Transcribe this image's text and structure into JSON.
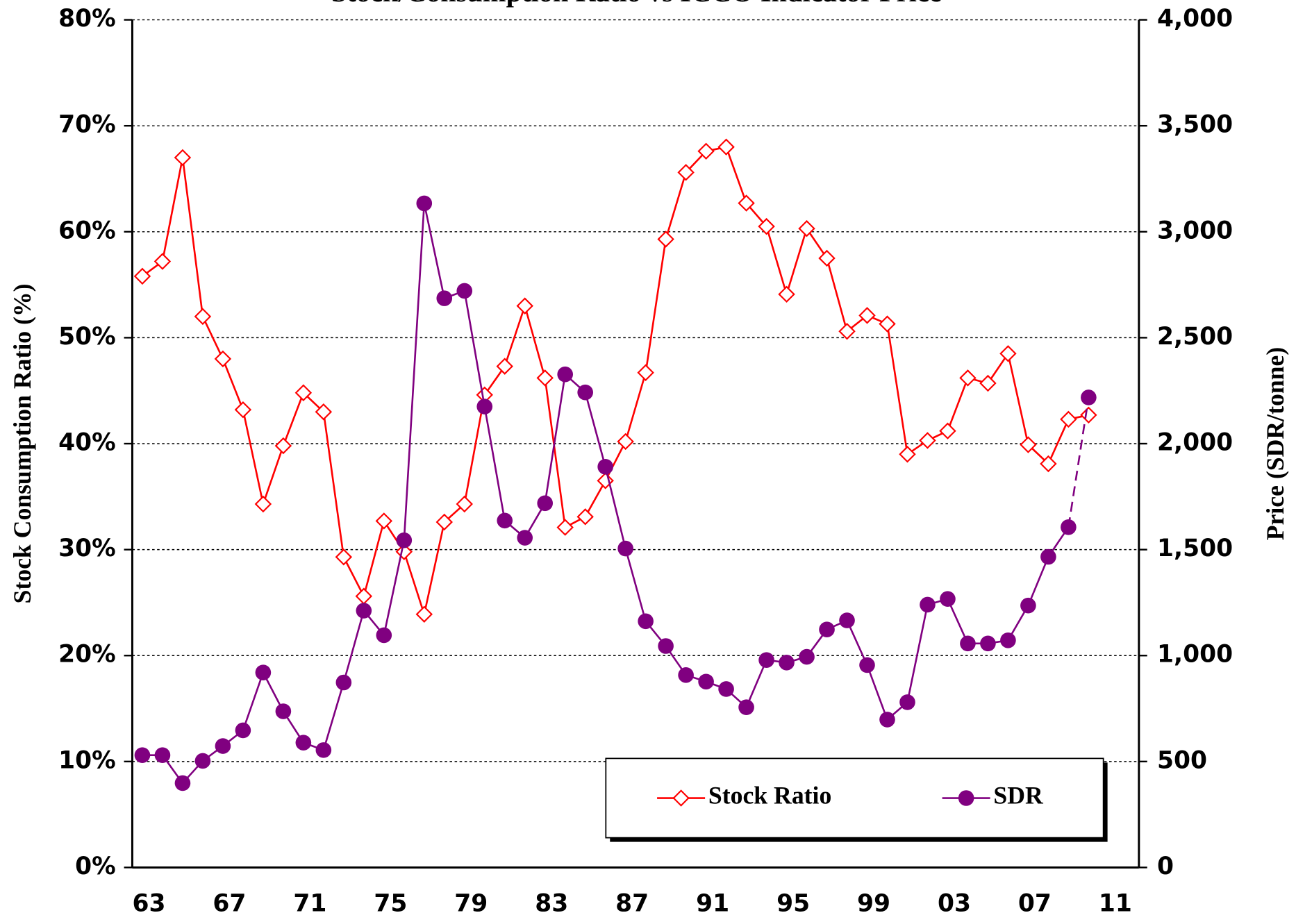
{
  "chart_data": {
    "type": "line",
    "title": "Stock/Consumption Ratio vs ICCO Indicator Price",
    "y_label": "Stock Consumption Ratio (%)",
    "y2_label": "Price (SDR/tonne)",
    "categories": [
      "63",
      null,
      null,
      null,
      "67",
      null,
      null,
      null,
      "71",
      null,
      null,
      null,
      "75",
      null,
      null,
      null,
      "79",
      null,
      null,
      null,
      "83",
      null,
      null,
      null,
      "87",
      null,
      null,
      null,
      "91",
      null,
      null,
      null,
      "95",
      null,
      null,
      null,
      "99",
      null,
      null,
      null,
      "03",
      null,
      null,
      null,
      "07",
      null,
      null,
      null,
      "11"
    ],
    "series": [
      {
        "name": "Stock Ratio",
        "color": "#ff0000",
        "marker": "diamond",
        "axis": "y",
        "values": [
          55.8,
          57.2,
          67.0,
          52.0,
          48.0,
          43.2,
          34.3,
          39.8,
          44.8,
          43.0,
          29.3,
          25.6,
          32.7,
          29.8,
          23.9,
          32.6,
          34.3,
          44.6,
          47.3,
          53.0,
          46.2,
          32.1,
          33.1,
          36.5,
          40.2,
          46.7,
          59.3,
          65.6,
          67.6,
          68.0,
          62.7,
          60.5,
          54.1,
          60.3,
          57.5,
          50.6,
          52.1,
          51.3,
          39.0,
          40.3,
          41.2,
          46.2,
          45.7,
          48.5,
          39.9,
          38.1,
          42.3,
          42.7,
          null
        ]
      },
      {
        "name": "SDR",
        "color": "#800080",
        "marker": "circle",
        "axis": "y2",
        "dashed_last": true,
        "values": [
          530,
          530,
          398,
          503,
          573,
          647,
          920,
          737,
          589,
          554,
          873,
          1212,
          1096,
          1544,
          3134,
          2686,
          2721,
          2175,
          1637,
          1556,
          1719,
          2327,
          2242,
          1891,
          1505,
          1162,
          1045,
          908,
          877,
          842,
          756,
          979,
          967,
          994,
          1123,
          1166,
          955,
          698,
          780,
          1240,
          1267,
          1057,
          1057,
          1072,
          1236,
          1466,
          1606,
          2218,
          null
        ]
      }
    ],
    "ylim": [
      0,
      80
    ],
    "yticks": [
      {
        "value": 0,
        "label": "0%"
      },
      {
        "value": 10,
        "label": "10%"
      },
      {
        "value": 20,
        "label": "20%"
      },
      {
        "value": 30,
        "label": "30%"
      },
      {
        "value": 40,
        "label": "40%"
      },
      {
        "value": 50,
        "label": "50%"
      },
      {
        "value": 60,
        "label": "60%"
      },
      {
        "value": 70,
        "label": "70%"
      },
      {
        "value": 80,
        "label": "80%"
      }
    ],
    "y2lim": [
      0,
      4000
    ],
    "y2ticks": [
      0,
      500,
      {
        "value": 1000,
        "label": "1,000"
      },
      {
        "value": 1500,
        "label": "1,500"
      },
      {
        "value": 2000,
        "label": "2,000"
      },
      {
        "value": 2500,
        "label": "2,500"
      },
      {
        "value": 3000,
        "label": "3,000"
      },
      {
        "value": 3500,
        "label": "3,500"
      },
      {
        "value": 4000,
        "label": "4,000"
      }
    ],
    "grid": true,
    "legend": "lower right"
  }
}
